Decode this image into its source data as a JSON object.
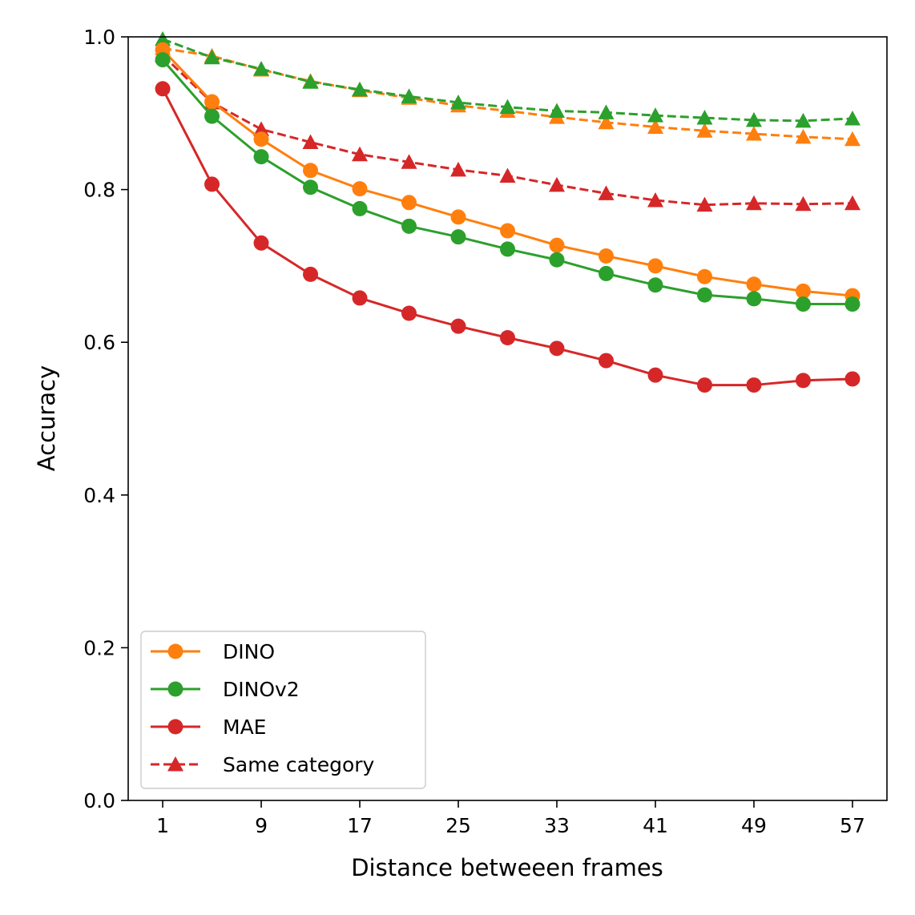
{
  "chart_data": {
    "type": "line",
    "title": "",
    "xlabel": "Distance betweeen frames",
    "ylabel": "Accuracy",
    "xlim": [
      -1.8,
      59.8
    ],
    "ylim": [
      0.0,
      1.0
    ],
    "x": [
      1,
      5,
      9,
      13,
      17,
      21,
      25,
      29,
      33,
      37,
      41,
      45,
      49,
      53,
      57
    ],
    "xticks": [
      1,
      9,
      17,
      25,
      33,
      41,
      49,
      57
    ],
    "xtick_labels": [
      "1",
      "9",
      "17",
      "25",
      "33",
      "41",
      "49",
      "57"
    ],
    "yticks": [
      0.0,
      0.2,
      0.4,
      0.6,
      0.8,
      1.0
    ],
    "ytick_labels": [
      "0.0",
      "0.2",
      "0.4",
      "0.6",
      "0.8",
      "1.0"
    ],
    "grid": false,
    "legend_position": "lower-left",
    "series": [
      {
        "name": "DINO same category",
        "color": "#ff7f0e",
        "style": "dashed",
        "marker": "triangle",
        "values": [
          0.985,
          0.975,
          0.957,
          0.942,
          0.93,
          0.92,
          0.91,
          0.903,
          0.895,
          0.888,
          0.882,
          0.877,
          0.873,
          0.869,
          0.866
        ]
      },
      {
        "name": "DINOv2 same category",
        "color": "#2ca02c",
        "style": "dashed",
        "marker": "triangle",
        "values": [
          0.997,
          0.973,
          0.958,
          0.941,
          0.931,
          0.922,
          0.914,
          0.908,
          0.903,
          0.901,
          0.897,
          0.894,
          0.891,
          0.89,
          0.893
        ]
      },
      {
        "name": "MAE same category",
        "color": "#d62728",
        "style": "dashed",
        "marker": "triangle",
        "values": [
          0.976,
          0.914,
          0.879,
          0.862,
          0.846,
          0.836,
          0.826,
          0.818,
          0.806,
          0.795,
          0.786,
          0.78,
          0.782,
          0.781,
          0.782
        ]
      },
      {
        "name": "DINO",
        "color": "#ff7f0e",
        "style": "solid",
        "marker": "circle",
        "values": [
          0.983,
          0.915,
          0.866,
          0.825,
          0.801,
          0.783,
          0.764,
          0.746,
          0.727,
          0.713,
          0.7,
          0.686,
          0.676,
          0.667,
          0.661
        ]
      },
      {
        "name": "DINOv2",
        "color": "#2ca02c",
        "style": "solid",
        "marker": "circle",
        "values": [
          0.97,
          0.896,
          0.843,
          0.803,
          0.775,
          0.752,
          0.738,
          0.722,
          0.708,
          0.69,
          0.675,
          0.662,
          0.657,
          0.65,
          0.65
        ]
      },
      {
        "name": "MAE",
        "color": "#d62728",
        "style": "solid",
        "marker": "circle",
        "values": [
          0.932,
          0.807,
          0.73,
          0.689,
          0.658,
          0.638,
          0.621,
          0.606,
          0.592,
          0.576,
          0.557,
          0.544,
          0.544,
          0.55,
          0.552
        ]
      }
    ],
    "legend": [
      {
        "label": "DINO",
        "color": "#ff7f0e",
        "style": "solid",
        "marker": "circle"
      },
      {
        "label": "DINOv2",
        "color": "#2ca02c",
        "style": "solid",
        "marker": "circle"
      },
      {
        "label": "MAE",
        "color": "#d62728",
        "style": "solid",
        "marker": "circle"
      },
      {
        "label": "Same category",
        "color": "#d62728",
        "style": "dashed",
        "marker": "triangle"
      }
    ]
  }
}
